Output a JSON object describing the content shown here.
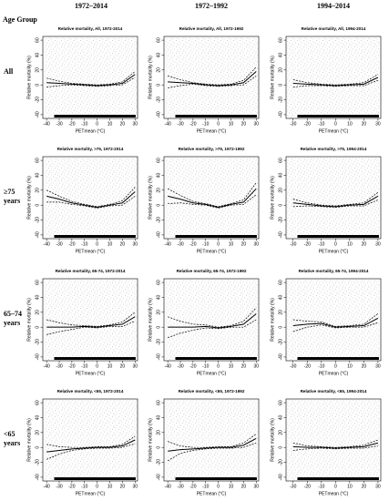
{
  "header": {
    "row_header": "Age Group",
    "columns": [
      "1972–2014",
      "1972–1992",
      "1994–2014"
    ],
    "rows": [
      [
        "All"
      ],
      [
        "≥75",
        "years"
      ],
      [
        "65–74",
        "years"
      ],
      [
        "<65",
        "years"
      ]
    ]
  },
  "chart_data": [
    {
      "type": "line",
      "title": "Relative mortality, All, 1972-2014",
      "xlabel": "PETmean (°C)",
      "ylabel": "Relative mortality (%)",
      "x": [
        -40,
        -30,
        -20,
        -10,
        0,
        10,
        20,
        30
      ],
      "xlim": [
        -43,
        32
      ],
      "xticks": [
        -40,
        -30,
        -20,
        -10,
        0,
        10,
        20,
        30
      ],
      "ylim": [
        -45,
        65
      ],
      "yticks": [
        -40,
        -20,
        0,
        20,
        40,
        60
      ],
      "series": [
        {
          "color": "#000000",
          "dashed": false,
          "values": [
            3,
            2,
            1,
            0,
            -1,
            0,
            2,
            14
          ]
        },
        {
          "color": "#000000",
          "dashed": true,
          "values": [
            9,
            5,
            2,
            1,
            0,
            1,
            4,
            18
          ]
        },
        {
          "color": "#000000",
          "dashed": true,
          "values": [
            -3,
            -1,
            0,
            -1,
            -2,
            -1,
            0,
            10
          ]
        }
      ]
    },
    {
      "type": "line",
      "title": "Relative mortality, All, 1972-1992",
      "xlabel": "PETmean (°C)",
      "ylabel": "Relative mortality (%)",
      "x": [
        -40,
        -30,
        -20,
        -10,
        0,
        10,
        20,
        30
      ],
      "xlim": [
        -43,
        32
      ],
      "xticks": [
        -40,
        -30,
        -20,
        -10,
        0,
        10,
        20,
        30
      ],
      "ylim": [
        -45,
        65
      ],
      "yticks": [
        -40,
        -20,
        0,
        20,
        40,
        60
      ],
      "series": [
        {
          "color": "#000000",
          "dashed": false,
          "values": [
            4,
            3,
            2,
            0,
            -1,
            0,
            3,
            18
          ]
        },
        {
          "color": "#000000",
          "dashed": true,
          "values": [
            12,
            7,
            3,
            1,
            0,
            1,
            6,
            24
          ]
        },
        {
          "color": "#000000",
          "dashed": true,
          "values": [
            -4,
            -1,
            1,
            -1,
            -2,
            -1,
            0,
            12
          ]
        }
      ]
    },
    {
      "type": "line",
      "title": "Relative mortality, All, 1994-2014",
      "xlabel": "PETmean (°C)",
      "ylabel": "Relative mortality (%)",
      "x": [
        -30,
        -20,
        -10,
        0,
        10,
        20,
        30
      ],
      "xlim": [
        -35,
        32
      ],
      "xticks": [
        -30,
        -20,
        -10,
        0,
        10,
        20,
        30
      ],
      "ylim": [
        -45,
        65
      ],
      "yticks": [
        -40,
        -20,
        0,
        20,
        40,
        60
      ],
      "series": [
        {
          "color": "#000000",
          "dashed": false,
          "values": [
            2,
            1,
            0,
            -1,
            0,
            1,
            10
          ]
        },
        {
          "color": "#000000",
          "dashed": true,
          "values": [
            7,
            3,
            1,
            0,
            1,
            3,
            14
          ]
        },
        {
          "color": "#000000",
          "dashed": true,
          "values": [
            -3,
            -1,
            -1,
            -2,
            -1,
            -1,
            6
          ]
        }
      ]
    },
    {
      "type": "line",
      "title": "Relative mortality, >75, 1972-2014",
      "xlabel": "PETmean (°C)",
      "ylabel": "Relative mortality (%)",
      "x": [
        -40,
        -30,
        -20,
        -10,
        0,
        10,
        20,
        30
      ],
      "xlim": [
        -43,
        32
      ],
      "xticks": [
        -40,
        -30,
        -20,
        -10,
        0,
        10,
        20,
        30
      ],
      "ylim": [
        -45,
        65
      ],
      "yticks": [
        -40,
        -20,
        0,
        20,
        40,
        60
      ],
      "series": [
        {
          "color": "#000000",
          "dashed": false,
          "values": [
            12,
            8,
            3,
            0,
            -3,
            0,
            3,
            18
          ]
        },
        {
          "color": "#000000",
          "dashed": true,
          "values": [
            20,
            12,
            5,
            1,
            -2,
            1,
            6,
            24
          ]
        },
        {
          "color": "#000000",
          "dashed": true,
          "values": [
            4,
            4,
            1,
            -1,
            -4,
            -1,
            0,
            12
          ]
        }
      ]
    },
    {
      "type": "line",
      "title": "Relative mortality, >75, 1972-1992",
      "xlabel": "PETmean (°C)",
      "ylabel": "Relative mortality (%)",
      "x": [
        -40,
        -30,
        -20,
        -10,
        0,
        10,
        20,
        30
      ],
      "xlim": [
        -43,
        32
      ],
      "xticks": [
        -40,
        -30,
        -20,
        -10,
        0,
        10,
        20,
        30
      ],
      "ylim": [
        -45,
        65
      ],
      "yticks": [
        -40,
        -20,
        0,
        20,
        40,
        60
      ],
      "series": [
        {
          "color": "#000000",
          "dashed": false,
          "values": [
            12,
            8,
            3,
            1,
            -3,
            1,
            4,
            22
          ]
        },
        {
          "color": "#000000",
          "dashed": true,
          "values": [
            22,
            13,
            5,
            2,
            -2,
            2,
            7,
            30
          ]
        },
        {
          "color": "#000000",
          "dashed": true,
          "values": [
            2,
            3,
            1,
            0,
            -4,
            0,
            1,
            14
          ]
        }
      ]
    },
    {
      "type": "line",
      "title": "Relative mortality, >75, 1994-2014",
      "xlabel": "PETmean (°C)",
      "ylabel": "Relative mortality (%)",
      "x": [
        -30,
        -20,
        -10,
        0,
        10,
        20,
        30
      ],
      "xlim": [
        -35,
        32
      ],
      "xticks": [
        -30,
        -20,
        -10,
        0,
        10,
        20,
        30
      ],
      "ylim": [
        -45,
        65
      ],
      "yticks": [
        -40,
        -20,
        0,
        20,
        40,
        60
      ],
      "series": [
        {
          "color": "#000000",
          "dashed": false,
          "values": [
            3,
            1,
            -1,
            -2,
            0,
            1,
            12
          ]
        },
        {
          "color": "#000000",
          "dashed": true,
          "values": [
            8,
            3,
            0,
            -1,
            1,
            3,
            17
          ]
        },
        {
          "color": "#000000",
          "dashed": true,
          "values": [
            -2,
            -1,
            -2,
            -3,
            -1,
            -1,
            7
          ]
        }
      ]
    },
    {
      "type": "line",
      "title": "Relative mortality, 65-74, 1972-2014",
      "xlabel": "PETmean (°C)",
      "ylabel": "Relative mortality (%)",
      "x": [
        -40,
        -30,
        -20,
        -10,
        0,
        10,
        20,
        30
      ],
      "xlim": [
        -43,
        32
      ],
      "xticks": [
        -40,
        -30,
        -20,
        -10,
        0,
        10,
        20,
        30
      ],
      "ylim": [
        -45,
        65
      ],
      "yticks": [
        -40,
        -20,
        0,
        20,
        40,
        60
      ],
      "series": [
        {
          "color": "#000000",
          "dashed": false,
          "values": [
            0,
            0,
            0,
            1,
            0,
            2,
            4,
            14
          ]
        },
        {
          "color": "#000000",
          "dashed": true,
          "values": [
            10,
            6,
            3,
            2,
            1,
            3,
            7,
            20
          ]
        },
        {
          "color": "#000000",
          "dashed": true,
          "values": [
            -10,
            -6,
            -3,
            0,
            -1,
            1,
            1,
            8
          ]
        }
      ]
    },
    {
      "type": "line",
      "title": "Relative mortality, 65-74, 1972-1992",
      "xlabel": "PETmean (°C)",
      "ylabel": "Relative mortality (%)",
      "x": [
        -40,
        -30,
        -20,
        -10,
        0,
        10,
        20,
        30
      ],
      "xlim": [
        -43,
        32
      ],
      "xticks": [
        -40,
        -30,
        -20,
        -10,
        0,
        10,
        20,
        30
      ],
      "ylim": [
        -45,
        65
      ],
      "yticks": [
        -40,
        -20,
        0,
        20,
        40,
        60
      ],
      "series": [
        {
          "color": "#000000",
          "dashed": false,
          "values": [
            0,
            0,
            0,
            1,
            -1,
            1,
            4,
            18
          ]
        },
        {
          "color": "#000000",
          "dashed": true,
          "values": [
            14,
            8,
            4,
            3,
            0,
            2,
            8,
            26
          ]
        },
        {
          "color": "#000000",
          "dashed": true,
          "values": [
            -14,
            -8,
            -4,
            -1,
            -2,
            0,
            0,
            10
          ]
        }
      ]
    },
    {
      "type": "line",
      "title": "Relative mortality, 65-74, 1994-2014",
      "xlabel": "PETmean (°C)",
      "ylabel": "Relative mortality (%)",
      "x": [
        -30,
        -20,
        -10,
        0,
        10,
        20,
        30
      ],
      "xlim": [
        -35,
        32
      ],
      "xticks": [
        -30,
        -20,
        -10,
        0,
        10,
        20,
        30
      ],
      "ylim": [
        -45,
        65
      ],
      "yticks": [
        -40,
        -20,
        0,
        20,
        40,
        60
      ],
      "series": [
        {
          "color": "#000000",
          "dashed": false,
          "values": [
            2,
            4,
            5,
            0,
            1,
            2,
            12
          ]
        },
        {
          "color": "#000000",
          "dashed": true,
          "values": [
            10,
            8,
            7,
            1,
            2,
            4,
            18
          ]
        },
        {
          "color": "#000000",
          "dashed": true,
          "values": [
            -6,
            0,
            3,
            -1,
            0,
            0,
            6
          ]
        }
      ]
    },
    {
      "type": "line",
      "title": "Relative mortality, <65, 1972-2014",
      "xlabel": "PETmean (°C)",
      "ylabel": "Relative mortality (%)",
      "x": [
        -40,
        -30,
        -20,
        -10,
        0,
        10,
        20,
        30
      ],
      "xlim": [
        -43,
        32
      ],
      "xticks": [
        -40,
        -30,
        -20,
        -10,
        0,
        10,
        20,
        30
      ],
      "ylim": [
        -45,
        65
      ],
      "yticks": [
        -40,
        -20,
        0,
        20,
        40,
        60
      ],
      "series": [
        {
          "color": "#000000",
          "dashed": false,
          "values": [
            -6,
            -4,
            -2,
            -1,
            0,
            0,
            2,
            10
          ]
        },
        {
          "color": "#000000",
          "dashed": true,
          "values": [
            4,
            1,
            0,
            0,
            1,
            1,
            4,
            15
          ]
        },
        {
          "color": "#000000",
          "dashed": true,
          "values": [
            -16,
            -9,
            -4,
            -2,
            -1,
            -1,
            0,
            5
          ]
        }
      ]
    },
    {
      "type": "line",
      "title": "Relative mortality, <65, 1972-1992",
      "xlabel": "PETmean (°C)",
      "ylabel": "Relative mortality (%)",
      "x": [
        -40,
        -30,
        -20,
        -10,
        0,
        10,
        20,
        30
      ],
      "xlim": [
        -43,
        32
      ],
      "xticks": [
        -40,
        -30,
        -20,
        -10,
        0,
        10,
        20,
        30
      ],
      "ylim": [
        -45,
        65
      ],
      "yticks": [
        -40,
        -20,
        0,
        20,
        40,
        60
      ],
      "series": [
        {
          "color": "#000000",
          "dashed": false,
          "values": [
            -5,
            -3,
            -2,
            -1,
            0,
            0,
            3,
            12
          ]
        },
        {
          "color": "#000000",
          "dashed": true,
          "values": [
            8,
            2,
            0,
            0,
            1,
            1,
            6,
            18
          ]
        },
        {
          "color": "#000000",
          "dashed": true,
          "values": [
            -18,
            -8,
            -4,
            -2,
            -1,
            -1,
            0,
            6
          ]
        }
      ]
    },
    {
      "type": "line",
      "title": "Relative mortality, <65, 1994-2014",
      "xlabel": "PETmean (°C)",
      "ylabel": "Relative mortality (%)",
      "x": [
        -30,
        -20,
        -10,
        0,
        10,
        20,
        30
      ],
      "xlim": [
        -35,
        32
      ],
      "xticks": [
        -30,
        -20,
        -10,
        0,
        10,
        20,
        30
      ],
      "ylim": [
        -45,
        65
      ],
      "yticks": [
        -40,
        -20,
        0,
        20,
        40,
        60
      ],
      "series": [
        {
          "color": "#000000",
          "dashed": false,
          "values": [
            1,
            0,
            0,
            -1,
            0,
            1,
            6
          ]
        },
        {
          "color": "#000000",
          "dashed": true,
          "values": [
            6,
            2,
            1,
            0,
            1,
            3,
            10
          ]
        },
        {
          "color": "#000000",
          "dashed": true,
          "values": [
            -4,
            -2,
            -1,
            -2,
            -1,
            -1,
            2
          ]
        }
      ]
    }
  ]
}
